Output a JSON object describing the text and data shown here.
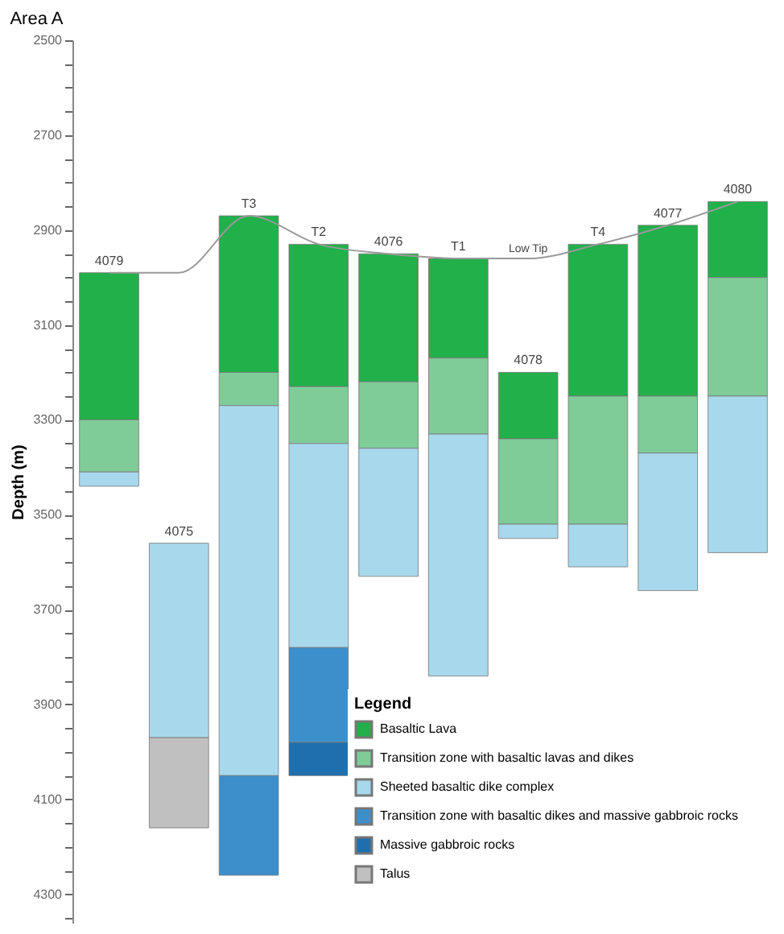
{
  "chart_data": {
    "type": "bar",
    "title": "Area A",
    "ylabel": "Depth (m)",
    "legend_title": "Legend",
    "categories": [
      "4079",
      "4075",
      "T3",
      "T2",
      "4076",
      "T1",
      "4078",
      "T4",
      "4077",
      "4080"
    ],
    "series": [
      {
        "name": "Basaltic Lava",
        "color": "#22b04b",
        "base": [
          2990,
          null,
          2870,
          2930,
          2950,
          2960,
          3200,
          2930,
          2890,
          2840
        ],
        "values": [
          310,
          null,
          330,
          300,
          270,
          210,
          140,
          320,
          360,
          160
        ]
      },
      {
        "name": "Transition zone with basaltic lavas and dikes",
        "color": "#7fcc99",
        "base": [
          3300,
          null,
          3200,
          3230,
          3220,
          3170,
          3340,
          3250,
          3250,
          3000
        ],
        "values": [
          110,
          null,
          70,
          120,
          140,
          160,
          180,
          270,
          120,
          250
        ]
      },
      {
        "name": "Sheeted basaltic dike complex",
        "color": "#a8d8ec",
        "base": [
          3410,
          3560,
          3270,
          3350,
          3360,
          3330,
          3520,
          3520,
          3370,
          3250
        ],
        "values": [
          30,
          410,
          780,
          430,
          270,
          510,
          30,
          90,
          290,
          330
        ]
      },
      {
        "name": "Transition zone with basaltic dikes and massive gabbroic rocks",
        "color": "#3d8fcb",
        "base": [
          null,
          null,
          4050,
          3780,
          null,
          null,
          null,
          null,
          null,
          null
        ],
        "values": [
          null,
          null,
          210,
          200,
          null,
          null,
          null,
          null,
          null,
          null
        ]
      },
      {
        "name": "Massive gabbroic rocks",
        "color": "#1f6fae",
        "base": [
          null,
          null,
          null,
          3980,
          null,
          null,
          null,
          null,
          null,
          null
        ],
        "values": [
          null,
          null,
          null,
          70,
          null,
          null,
          null,
          null,
          null,
          null
        ]
      },
      {
        "name": "Talus",
        "color": "#c0c0c0",
        "base": [
          null,
          3970,
          null,
          null,
          null,
          null,
          null,
          null,
          null,
          null
        ],
        "values": [
          null,
          190,
          null,
          null,
          null,
          null,
          null,
          null,
          null,
          null
        ]
      },
      {
        "type": "line",
        "color": "#9a9a9a",
        "values": [
          2990,
          2990,
          2870,
          2930,
          2950,
          2960,
          2960,
          2930,
          2890,
          2840
        ]
      }
    ],
    "ylim": [
      4360,
      2500
    ],
    "yticks": [
      2500,
      {
        "value": 2550,
        "label": null
      },
      {
        "value": 2600,
        "label": null
      },
      {
        "value": 2650,
        "label": null
      },
      2700,
      {
        "value": 2750,
        "label": null
      },
      {
        "value": 2800,
        "label": null
      },
      {
        "value": 2850,
        "label": null
      },
      2900,
      {
        "value": 2950,
        "label": null
      },
      {
        "value": 3000,
        "label": null
      },
      {
        "value": 3050,
        "label": null
      },
      3100,
      {
        "value": 3150,
        "label": null
      },
      {
        "value": 3200,
        "label": null
      },
      {
        "value": 3250,
        "label": null
      },
      3300,
      {
        "value": 3350,
        "label": null
      },
      {
        "value": 3400,
        "label": null
      },
      {
        "value": 3450,
        "label": null
      },
      3500,
      {
        "value": 3550,
        "label": null
      },
      {
        "value": 3600,
        "label": null
      },
      {
        "value": 3650,
        "label": null
      },
      3700,
      {
        "value": 3750,
        "label": null
      },
      {
        "value": 3800,
        "label": null
      },
      {
        "value": 3850,
        "label": null
      },
      3900,
      {
        "value": 3950,
        "label": null
      },
      {
        "value": 4000,
        "label": null
      },
      {
        "value": 4050,
        "label": null
      },
      4100,
      {
        "value": 4150,
        "label": null
      },
      {
        "value": 4200,
        "label": null
      },
      {
        "value": 4250,
        "label": null
      },
      4300,
      {
        "value": 4350,
        "label": null
      }
    ],
    "annotations": [
      {
        "text": "Low Tip",
        "x": "4078",
        "y": 2940
      }
    ],
    "tick_labels": "y",
    "grid": false,
    "legend": "bottom right"
  }
}
